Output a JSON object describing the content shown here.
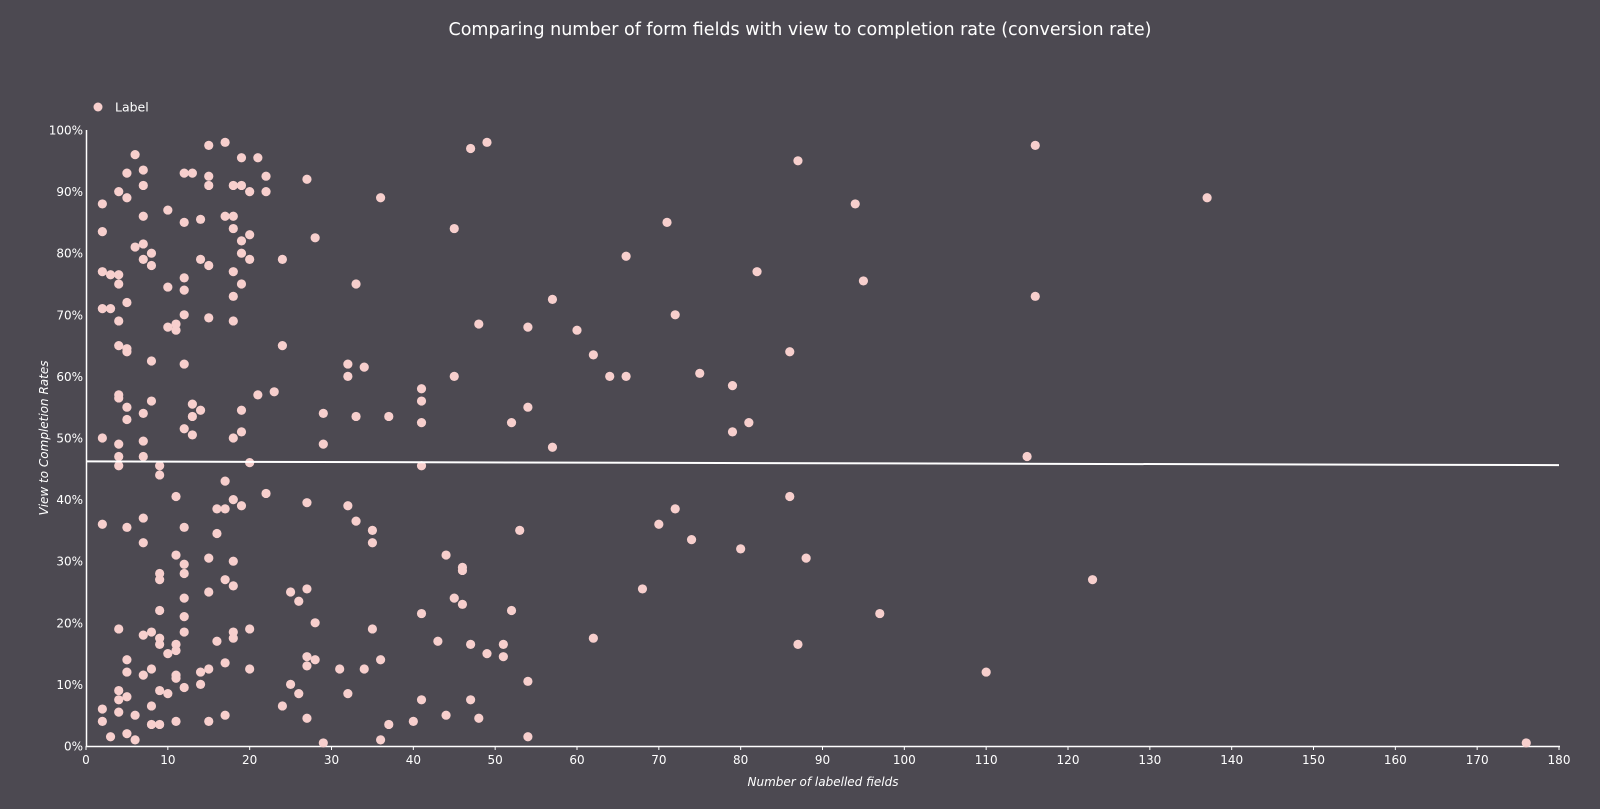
{
  "chart_data": {
    "type": "scatter",
    "title": "Comparing number of form fields with view to completion rate (conversion rate)",
    "xlabel": "Number of labelled fields",
    "ylabel": "View to Completion Rates",
    "xlim": [
      0,
      180
    ],
    "ylim": [
      0,
      100
    ],
    "x_ticks": [
      0,
      10,
      20,
      30,
      40,
      50,
      60,
      70,
      80,
      90,
      100,
      110,
      120,
      130,
      140,
      150,
      160,
      170,
      180
    ],
    "y_ticks": [
      0,
      10,
      20,
      30,
      40,
      50,
      60,
      70,
      80,
      90,
      100
    ],
    "y_tick_suffix": "%",
    "grid": false,
    "legend_position": "top-left",
    "colors": {
      "background": "#4c4951",
      "point": "#f7cfcd",
      "axis": "#ffffff",
      "trendline": "#ffffff"
    },
    "trendline": {
      "x": [
        0,
        180
      ],
      "y": [
        46.2,
        45.6
      ]
    },
    "series": [
      {
        "name": "Label",
        "points": [
          [
            2,
            88
          ],
          [
            2,
            83.5
          ],
          [
            2,
            77
          ],
          [
            2,
            71
          ],
          [
            2,
            50
          ],
          [
            2,
            36
          ],
          [
            2,
            6
          ],
          [
            2,
            4
          ],
          [
            3,
            76.5
          ],
          [
            3,
            71
          ],
          [
            3,
            1.5
          ],
          [
            4,
            90
          ],
          [
            4,
            76.5
          ],
          [
            4,
            75
          ],
          [
            4,
            69
          ],
          [
            4,
            65
          ],
          [
            4,
            57
          ],
          [
            4,
            56.5
          ],
          [
            4,
            49
          ],
          [
            4,
            47
          ],
          [
            4,
            45.5
          ],
          [
            4,
            19
          ],
          [
            4,
            9
          ],
          [
            4,
            7.5
          ],
          [
            4,
            5.5
          ],
          [
            5,
            93
          ],
          [
            5,
            89
          ],
          [
            5,
            72
          ],
          [
            5,
            64.5
          ],
          [
            5,
            64
          ],
          [
            5,
            55
          ],
          [
            5,
            53
          ],
          [
            5,
            35.5
          ],
          [
            5,
            14
          ],
          [
            5,
            12
          ],
          [
            5,
            8
          ],
          [
            5,
            2
          ],
          [
            6,
            96
          ],
          [
            6,
            81
          ],
          [
            6,
            5
          ],
          [
            6,
            1
          ],
          [
            7,
            93.5
          ],
          [
            7,
            91
          ],
          [
            7,
            86
          ],
          [
            7,
            81.5
          ],
          [
            7,
            79
          ],
          [
            7,
            54
          ],
          [
            7,
            49.5
          ],
          [
            7,
            47
          ],
          [
            7,
            37
          ],
          [
            7,
            33
          ],
          [
            7,
            18
          ],
          [
            7,
            11.5
          ],
          [
            8,
            80
          ],
          [
            8,
            78
          ],
          [
            8,
            62.5
          ],
          [
            8,
            56
          ],
          [
            8,
            18.5
          ],
          [
            8,
            12.5
          ],
          [
            8,
            6.5
          ],
          [
            8,
            3.5
          ],
          [
            9,
            45.5
          ],
          [
            9,
            44
          ],
          [
            9,
            28
          ],
          [
            9,
            27
          ],
          [
            9,
            22
          ],
          [
            9,
            17.5
          ],
          [
            9,
            16.5
          ],
          [
            9,
            9
          ],
          [
            9,
            3.5
          ],
          [
            10,
            87
          ],
          [
            10,
            74.5
          ],
          [
            10,
            68
          ],
          [
            10,
            15
          ],
          [
            10,
            8.5
          ],
          [
            11,
            68.5
          ],
          [
            11,
            67.5
          ],
          [
            11,
            40.5
          ],
          [
            11,
            31
          ],
          [
            11,
            16.5
          ],
          [
            11,
            15.5
          ],
          [
            11,
            11.5
          ],
          [
            11,
            11
          ],
          [
            11,
            4
          ],
          [
            12,
            93
          ],
          [
            12,
            85
          ],
          [
            12,
            76
          ],
          [
            12,
            74
          ],
          [
            12,
            70
          ],
          [
            12,
            62
          ],
          [
            12,
            51.5
          ],
          [
            12,
            35.5
          ],
          [
            12,
            29.5
          ],
          [
            12,
            28
          ],
          [
            12,
            24
          ],
          [
            12,
            21
          ],
          [
            12,
            18.5
          ],
          [
            12,
            9.5
          ],
          [
            13,
            93
          ],
          [
            13,
            55.5
          ],
          [
            13,
            53.5
          ],
          [
            13,
            50.5
          ],
          [
            14,
            85.5
          ],
          [
            14,
            79
          ],
          [
            14,
            54.5
          ],
          [
            14,
            12
          ],
          [
            14,
            10
          ],
          [
            15,
            97.5
          ],
          [
            15,
            92.5
          ],
          [
            15,
            91
          ],
          [
            15,
            78
          ],
          [
            15,
            69.5
          ],
          [
            15,
            30.5
          ],
          [
            15,
            25
          ],
          [
            15,
            12.5
          ],
          [
            15,
            4
          ],
          [
            16,
            38.5
          ],
          [
            16,
            34.5
          ],
          [
            16,
            17
          ],
          [
            17,
            98
          ],
          [
            17,
            86
          ],
          [
            17,
            43
          ],
          [
            17,
            38.5
          ],
          [
            17,
            27
          ],
          [
            17,
            13.5
          ],
          [
            17,
            5
          ],
          [
            18,
            91
          ],
          [
            18,
            86
          ],
          [
            18,
            84
          ],
          [
            18,
            77
          ],
          [
            18,
            73
          ],
          [
            18,
            69
          ],
          [
            18,
            50
          ],
          [
            18,
            40
          ],
          [
            18,
            30
          ],
          [
            18,
            26
          ],
          [
            18,
            18.5
          ],
          [
            18,
            17.5
          ],
          [
            19,
            95.5
          ],
          [
            19,
            91
          ],
          [
            19,
            82
          ],
          [
            19,
            80
          ],
          [
            19,
            75
          ],
          [
            19,
            54.5
          ],
          [
            19,
            51
          ],
          [
            19,
            39
          ],
          [
            20,
            90
          ],
          [
            20,
            83
          ],
          [
            20,
            79
          ],
          [
            20,
            46
          ],
          [
            20,
            19
          ],
          [
            20,
            12.5
          ],
          [
            21,
            95.5
          ],
          [
            21,
            57
          ],
          [
            22,
            92.5
          ],
          [
            22,
            90
          ],
          [
            22,
            41
          ],
          [
            23,
            57.5
          ],
          [
            24,
            79
          ],
          [
            24,
            65
          ],
          [
            24,
            6.5
          ],
          [
            25,
            25
          ],
          [
            25,
            10
          ],
          [
            26,
            23.5
          ],
          [
            26,
            8.5
          ],
          [
            27,
            92
          ],
          [
            27,
            39.5
          ],
          [
            27,
            25.5
          ],
          [
            27,
            14.5
          ],
          [
            27,
            13
          ],
          [
            27,
            4.5
          ],
          [
            28,
            82.5
          ],
          [
            28,
            20
          ],
          [
            28,
            14
          ],
          [
            29,
            54
          ],
          [
            29,
            49
          ],
          [
            29,
            0.5
          ],
          [
            31,
            12.5
          ],
          [
            32,
            62
          ],
          [
            32,
            60
          ],
          [
            32,
            39
          ],
          [
            32,
            8.5
          ],
          [
            33,
            75
          ],
          [
            33,
            53.5
          ],
          [
            33,
            36.5
          ],
          [
            34,
            61.5
          ],
          [
            34,
            12.5
          ],
          [
            35,
            35
          ],
          [
            35,
            33
          ],
          [
            35,
            19
          ],
          [
            36,
            89
          ],
          [
            36,
            14
          ],
          [
            36,
            1
          ],
          [
            37,
            53.5
          ],
          [
            37,
            3.5
          ],
          [
            40,
            4
          ],
          [
            41,
            58
          ],
          [
            41,
            56
          ],
          [
            41,
            52.5
          ],
          [
            41,
            45.5
          ],
          [
            41,
            21.5
          ],
          [
            41,
            7.5
          ],
          [
            43,
            17
          ],
          [
            44,
            31
          ],
          [
            44,
            5
          ],
          [
            45,
            84
          ],
          [
            45,
            60
          ],
          [
            45,
            24
          ],
          [
            46,
            29
          ],
          [
            46,
            28.5
          ],
          [
            46,
            23
          ],
          [
            47,
            97
          ],
          [
            47,
            16.5
          ],
          [
            47,
            7.5
          ],
          [
            48,
            68.5
          ],
          [
            48,
            4.5
          ],
          [
            49,
            98
          ],
          [
            49,
            15
          ],
          [
            51,
            16.5
          ],
          [
            51,
            14.5
          ],
          [
            52,
            52.5
          ],
          [
            52,
            22
          ],
          [
            53,
            35
          ],
          [
            54,
            68
          ],
          [
            54,
            55
          ],
          [
            54,
            10.5
          ],
          [
            54,
            1.5
          ],
          [
            57,
            72.5
          ],
          [
            57,
            48.5
          ],
          [
            60,
            67.5
          ],
          [
            62,
            63.5
          ],
          [
            62,
            17.5
          ],
          [
            64,
            60
          ],
          [
            66,
            79.5
          ],
          [
            66,
            60
          ],
          [
            68,
            25.5
          ],
          [
            70,
            36
          ],
          [
            71,
            85
          ],
          [
            72,
            70
          ],
          [
            72,
            38.5
          ],
          [
            74,
            33.5
          ],
          [
            75,
            60.5
          ],
          [
            79,
            58.5
          ],
          [
            79,
            51
          ],
          [
            80,
            32
          ],
          [
            81,
            52.5
          ],
          [
            82,
            77
          ],
          [
            86,
            64
          ],
          [
            86,
            40.5
          ],
          [
            87,
            95
          ],
          [
            87,
            16.5
          ],
          [
            88,
            30.5
          ],
          [
            94,
            88
          ],
          [
            95,
            75.5
          ],
          [
            97,
            21.5
          ],
          [
            110,
            12
          ],
          [
            115,
            47
          ],
          [
            116,
            97.5
          ],
          [
            116,
            73
          ],
          [
            123,
            27
          ],
          [
            137,
            89
          ],
          [
            176,
            0.5
          ]
        ]
      }
    ]
  }
}
